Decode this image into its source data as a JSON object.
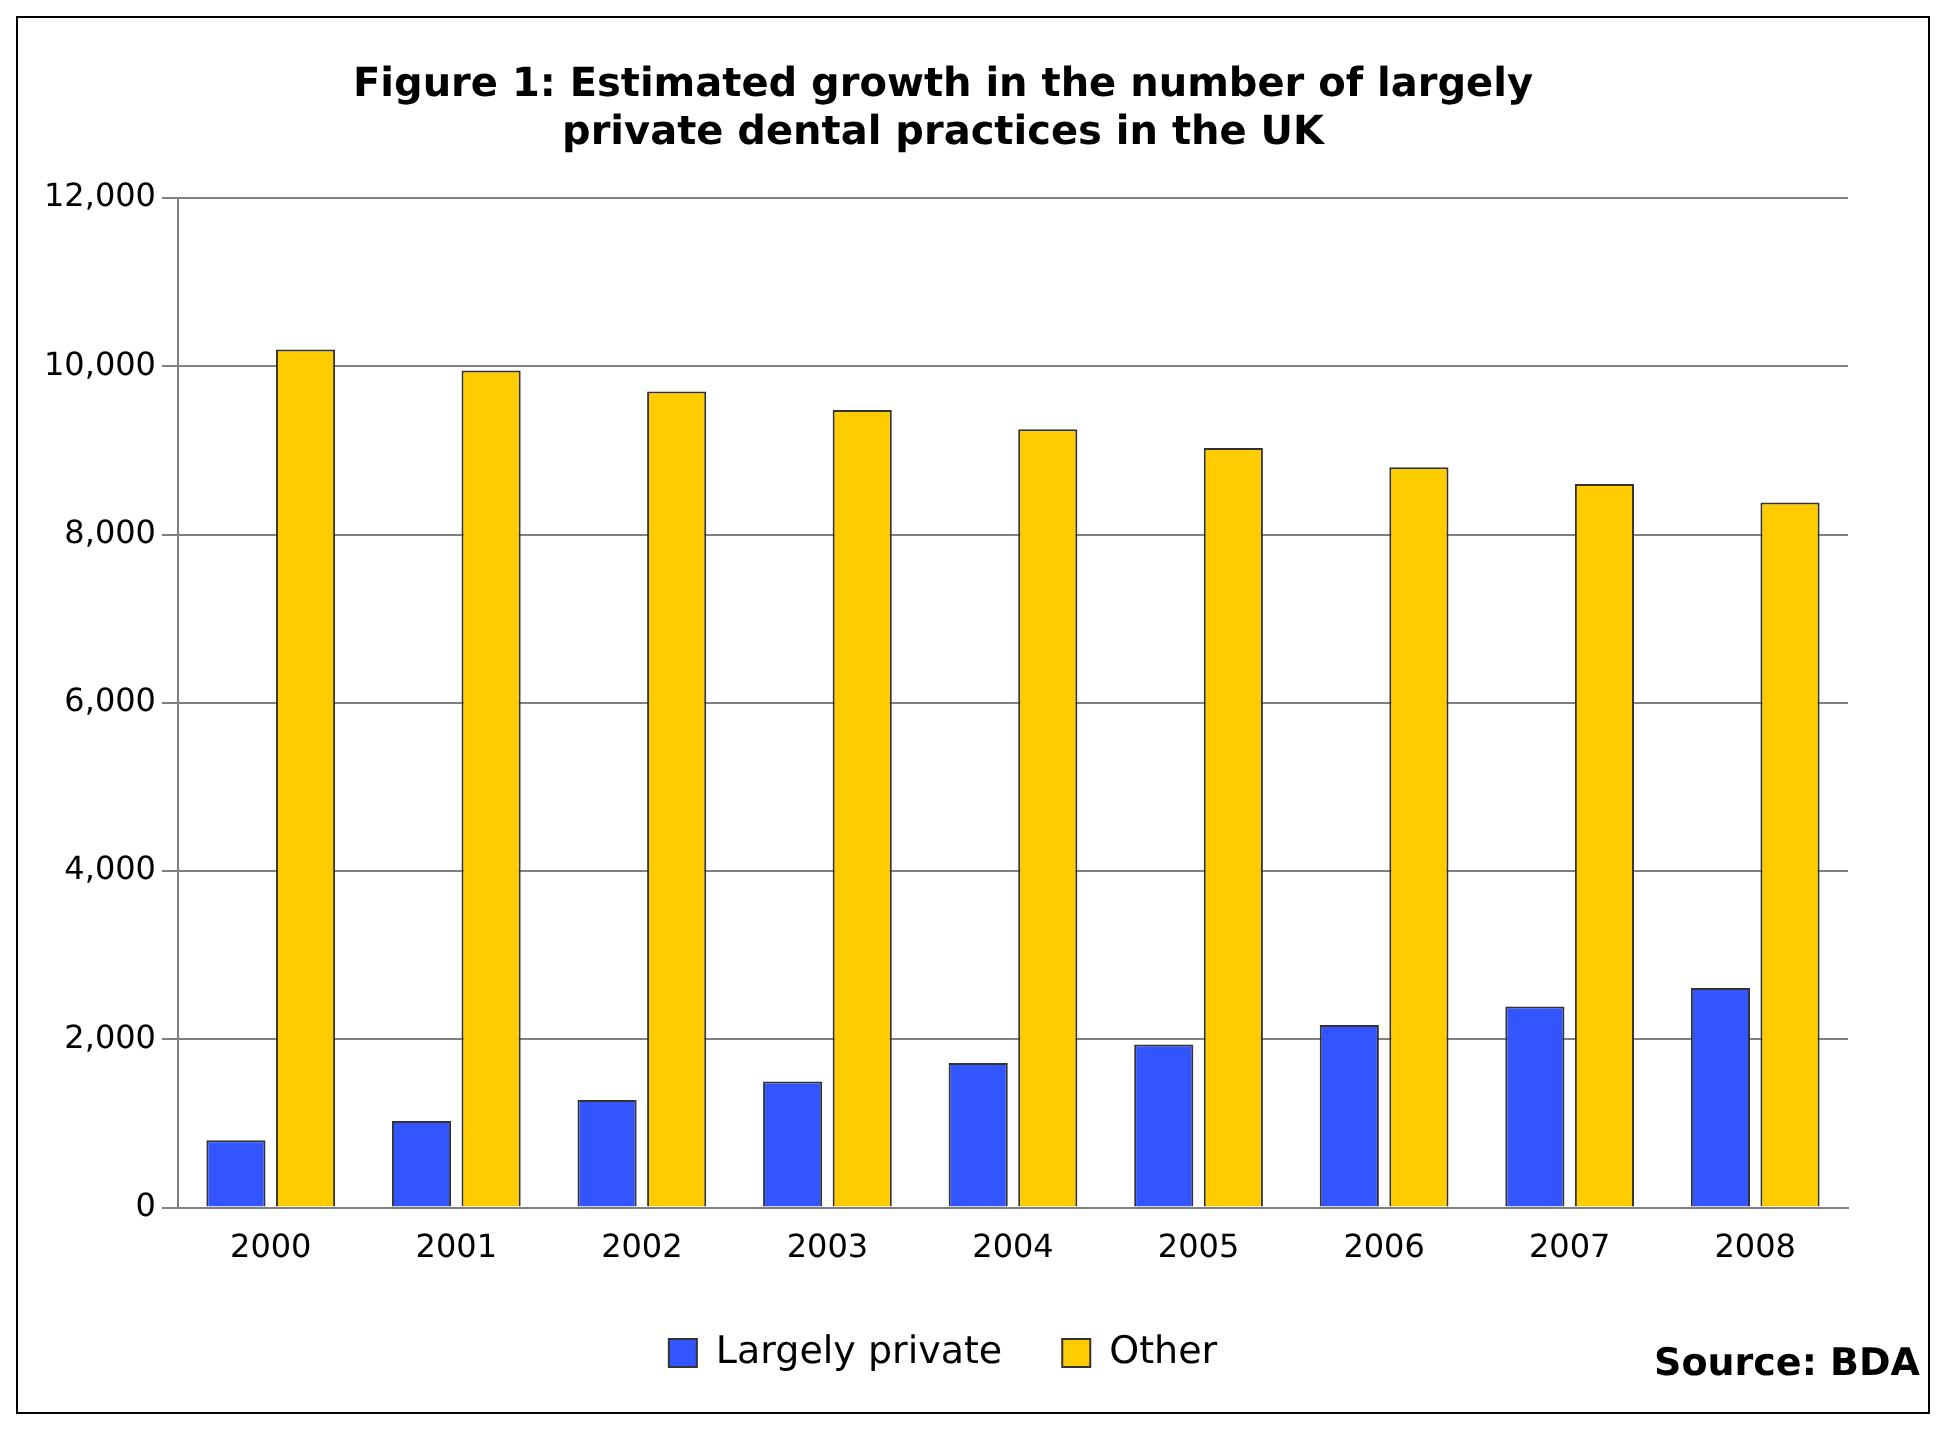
{
  "chart_data": {
    "type": "bar",
    "title": "Figure 1: Estimated growth in the number of largely private dental practices in the UK",
    "categories": [
      "2000",
      "2001",
      "2002",
      "2003",
      "2004",
      "2005",
      "2006",
      "2007",
      "2008"
    ],
    "series": [
      {
        "name": "Largely private",
        "color": "#3355ff",
        "values": [
          800,
          1030,
          1280,
          1500,
          1720,
          1940,
          2170,
          2390,
          2610
        ]
      },
      {
        "name": "Other",
        "color": "#ffcc00",
        "values": [
          10200,
          9950,
          9700,
          9480,
          9250,
          9030,
          8800,
          8600,
          8380
        ]
      }
    ],
    "ylim": [
      0,
      12000
    ],
    "yticks": [
      0,
      {
        "value": 2000,
        "label": "2,000"
      },
      {
        "value": 4000,
        "label": "4,000"
      },
      {
        "value": 6000,
        "label": "6,000"
      },
      {
        "value": 8000,
        "label": "8,000"
      },
      {
        "value": 10000,
        "label": "10,000"
      },
      {
        "value": 12000,
        "label": "12,000"
      }
    ],
    "grid": "y",
    "legend": "bottom",
    "annotations": [
      "Source: BDA"
    ]
  }
}
